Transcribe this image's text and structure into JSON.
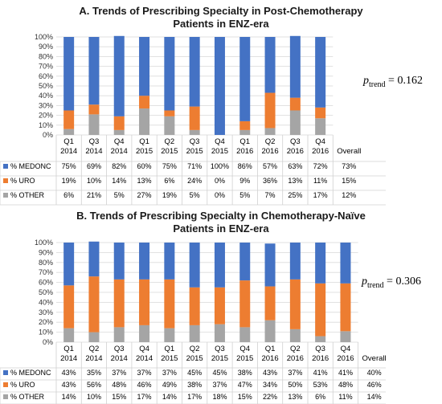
{
  "chart_data": [
    {
      "type": "bar",
      "stacked": true,
      "title_line1": "A. Trends of Prescribing Specialty in Post-Chemotherapy",
      "title_line2": "Patients in ENZ-era",
      "categories_q": [
        "Q1",
        "Q3",
        "Q4",
        "Q1",
        "Q2",
        "Q3",
        "Q4",
        "Q1",
        "Q2",
        "Q3",
        "Q4"
      ],
      "categories_y": [
        "2014",
        "2014",
        "2014",
        "2015",
        "2015",
        "2015",
        "2015",
        "2016",
        "2016",
        "2016",
        "2016"
      ],
      "overall_label": "Overall",
      "yticks": [
        "0%",
        "10%",
        "20%",
        "30%",
        "40%",
        "50%",
        "60%",
        "70%",
        "80%",
        "90%",
        "100%"
      ],
      "ylim": [
        0,
        100
      ],
      "series": [
        {
          "name": "% MEDONC",
          "color": "#4472c4",
          "values": [
            75,
            69,
            82,
            60,
            75,
            71,
            100,
            86,
            57,
            63,
            72
          ],
          "labels": [
            "75%",
            "69%",
            "82%",
            "60%",
            "75%",
            "71%",
            "100%",
            "86%",
            "57%",
            "63%",
            "72%"
          ],
          "overall": "73%"
        },
        {
          "name": "% URO",
          "color": "#ed7d31",
          "values": [
            19,
            10,
            14,
            13,
            6,
            24,
            0,
            9,
            36,
            13,
            11
          ],
          "labels": [
            "19%",
            "10%",
            "14%",
            "13%",
            "6%",
            "24%",
            "0%",
            "9%",
            "36%",
            "13%",
            "11%"
          ],
          "overall": "15%"
        },
        {
          "name": "% OTHER",
          "color": "#a5a5a5",
          "values": [
            6,
            21,
            5,
            27,
            19,
            5,
            0,
            5,
            7,
            25,
            17
          ],
          "labels": [
            "6%",
            "21%",
            "5%",
            "27%",
            "19%",
            "5%",
            "0%",
            "5%",
            "7%",
            "25%",
            "17%"
          ],
          "overall": "12%"
        }
      ],
      "p_label": "p",
      "p_sub": "trend",
      "p_value": " = 0.162"
    },
    {
      "type": "bar",
      "stacked": true,
      "title_line1": "B. Trends of Prescribing Specialty in Chemotherapy-Naïve",
      "title_line2": "Patients in ENZ-era",
      "categories_q": [
        "Q1",
        "Q2",
        "Q3",
        "Q4",
        "Q1",
        "Q2",
        "Q3",
        "Q4",
        "Q1",
        "Q2",
        "Q3",
        "Q4"
      ],
      "categories_y": [
        "2014",
        "2014",
        "2014",
        "2014",
        "2015",
        "2015",
        "2015",
        "2015",
        "2016",
        "2016",
        "2016",
        "2016"
      ],
      "overall_label": "Overall",
      "yticks": [
        "0%",
        "10%",
        "20%",
        "30%",
        "40%",
        "50%",
        "60%",
        "70%",
        "80%",
        "90%",
        "100%"
      ],
      "ylim": [
        0,
        100
      ],
      "series": [
        {
          "name": "% MEDONC",
          "color": "#4472c4",
          "values": [
            43,
            35,
            37,
            37,
            37,
            45,
            45,
            38,
            43,
            37,
            41,
            41
          ],
          "labels": [
            "43%",
            "35%",
            "37%",
            "37%",
            "37%",
            "45%",
            "45%",
            "38%",
            "43%",
            "37%",
            "41%",
            "41%"
          ],
          "overall": "40%"
        },
        {
          "name": "% URO",
          "color": "#ed7d31",
          "values": [
            43,
            56,
            48,
            46,
            49,
            38,
            37,
            47,
            34,
            50,
            53,
            48
          ],
          "labels": [
            "43%",
            "56%",
            "48%",
            "46%",
            "49%",
            "38%",
            "37%",
            "47%",
            "34%",
            "50%",
            "53%",
            "48%"
          ],
          "overall": "46%"
        },
        {
          "name": "% OTHER",
          "color": "#a5a5a5",
          "values": [
            14,
            10,
            15,
            17,
            14,
            17,
            18,
            15,
            22,
            13,
            6,
            11
          ],
          "labels": [
            "14%",
            "10%",
            "15%",
            "17%",
            "14%",
            "17%",
            "18%",
            "15%",
            "22%",
            "13%",
            "6%",
            "11%"
          ],
          "overall": "14%"
        }
      ],
      "p_label": "p",
      "p_sub": "trend",
      "p_value": " = 0.306"
    }
  ]
}
